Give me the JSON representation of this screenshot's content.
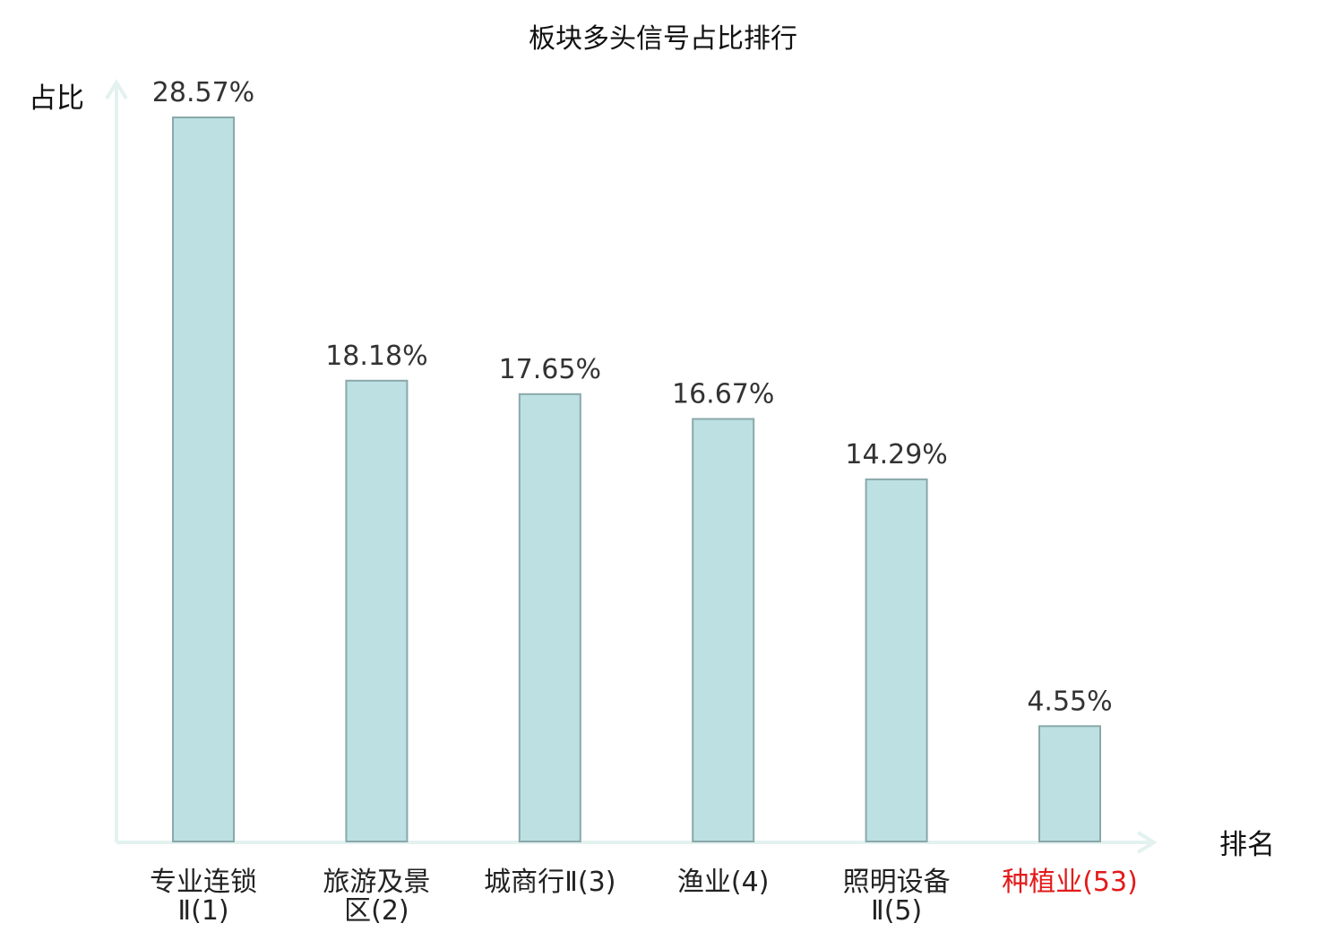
{
  "chart_data": {
    "type": "bar",
    "title": "板块多头信号占比排行",
    "ylabel": "占比",
    "xlabel": "排名",
    "categories": [
      [
        "专业连锁",
        "Ⅱ(1)"
      ],
      [
        "旅游及景",
        "区(2)"
      ],
      [
        "城商行Ⅱ(3)"
      ],
      [
        "渔业(4)"
      ],
      [
        "照明设备",
        "Ⅱ(5)"
      ],
      [
        "种植业(53)"
      ]
    ],
    "values": [
      28.57,
      18.18,
      17.65,
      16.67,
      14.29,
      4.55
    ],
    "value_labels": [
      "28.57%",
      "18.18%",
      "17.65%",
      "16.67%",
      "14.29%",
      "4.55%"
    ],
    "highlight_index": 5,
    "ylim": [
      0,
      28.57
    ],
    "grid": false,
    "colors": {
      "bar_fill": "#bde0e3",
      "bar_stroke": "#8aa8aa",
      "axis": "#e3f2ef",
      "label": "#222222",
      "highlight": "#e31a1a",
      "value_label": "#333333"
    }
  }
}
